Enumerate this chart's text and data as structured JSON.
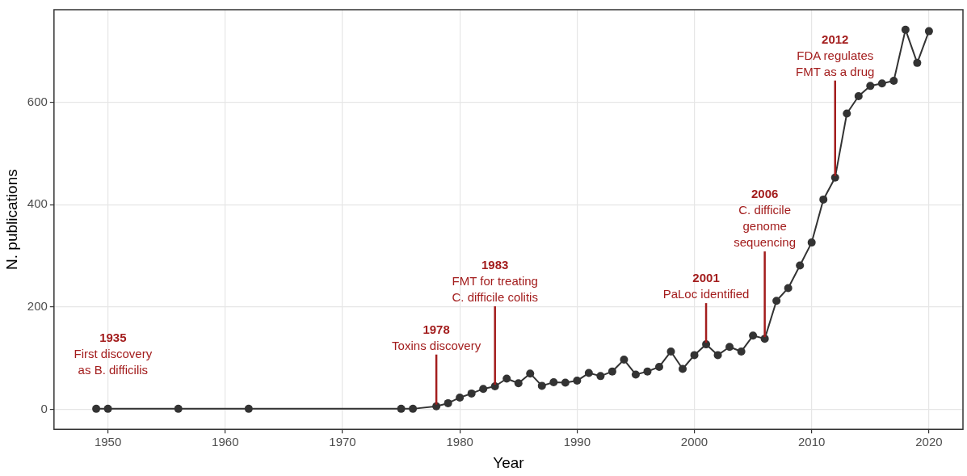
{
  "chart_data": {
    "type": "line",
    "xlabel": "Year",
    "ylabel": "N. publications",
    "x": [
      1949,
      1950,
      1956,
      1962,
      1975,
      1976,
      1978,
      1979,
      1980,
      1981,
      1982,
      1983,
      1984,
      1985,
      1986,
      1987,
      1988,
      1989,
      1990,
      1991,
      1992,
      1993,
      1994,
      1995,
      1996,
      1997,
      1998,
      1999,
      2000,
      2001,
      2002,
      2003,
      2004,
      2005,
      2006,
      2007,
      2008,
      2009,
      2010,
      2011,
      2012,
      2013,
      2014,
      2015,
      2016,
      2017,
      2018,
      2019,
      2020
    ],
    "series": [
      {
        "color": "#333333",
        "values": [
          1,
          1,
          1,
          1,
          1,
          1,
          6,
          12,
          23,
          31,
          40,
          45,
          60,
          51,
          70,
          46,
          53,
          52,
          56,
          71,
          65,
          74,
          97,
          68,
          74,
          83,
          113,
          79,
          106,
          127,
          106,
          122,
          113,
          144,
          138,
          212,
          237,
          281,
          326,
          410,
          453,
          578,
          612,
          632,
          637,
          642,
          742,
          677,
          739
        ]
      }
    ],
    "xlim": [
      1945.4,
      2022.9
    ],
    "xticks": [
      1950,
      1960,
      1970,
      1980,
      1990,
      2000,
      2010,
      2020
    ],
    "ylim": [
      -39,
      781
    ],
    "yticks": [
      0,
      200,
      400,
      600
    ],
    "grid": true,
    "legend": false,
    "marker": "circle",
    "line_style": "solid",
    "annotations": [
      "1935\nFirst discovery\nas B. difficilis",
      {
        "text": "1978\nToxins discovery",
        "x": 1978,
        "y": 6
      },
      {
        "text": "1983\nFMT for treating\nC. difficile colitis",
        "x": 1983,
        "y": 45
      },
      {
        "text": "2001\nPaLoc identified",
        "x": 2001,
        "y": 127
      },
      {
        "text": "2006\nC. difficile\ngenome\nsequencing",
        "x": 2006,
        "y": 138
      },
      {
        "text": "2012\nFDA regulates\nFMT as a drug",
        "x": 2012,
        "y": 453
      }
    ]
  }
}
